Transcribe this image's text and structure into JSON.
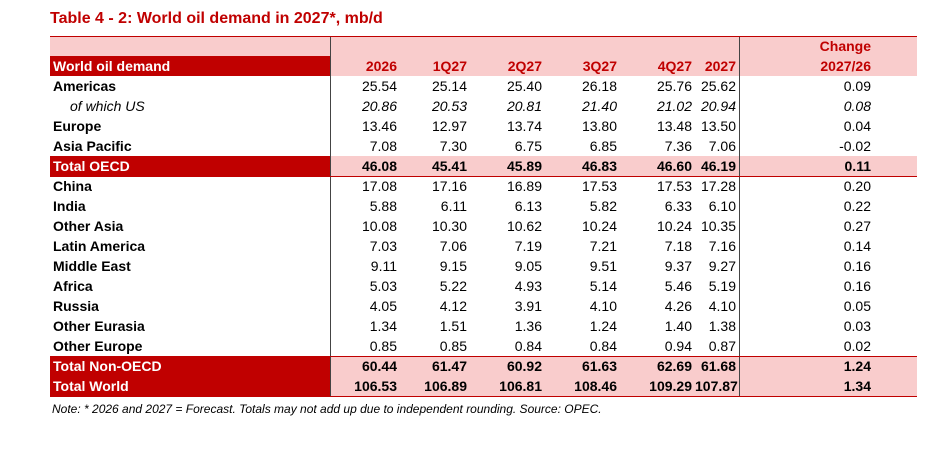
{
  "title": "Table 4 - 2: World oil demand in 2027*, mb/d",
  "table": {
    "header": [
      "World oil demand",
      "2026",
      "1Q27",
      "2Q27",
      "3Q27",
      "4Q27",
      "2027"
    ],
    "change_header": [
      "Change",
      "2027/26"
    ],
    "rows": [
      [
        "Americas",
        "25.54",
        "25.14",
        "25.40",
        "26.18",
        "25.76",
        "25.62",
        "0.09"
      ],
      [
        "of which US",
        "20.86",
        "20.53",
        "20.81",
        "21.40",
        "21.02",
        "20.94",
        "0.08"
      ],
      [
        "Europe",
        "13.46",
        "12.97",
        "13.74",
        "13.80",
        "13.48",
        "13.50",
        "0.04"
      ],
      [
        "Asia Pacific",
        "7.08",
        "7.30",
        "6.75",
        "6.85",
        "7.36",
        "7.06",
        "-0.02"
      ],
      [
        "Total OECD",
        "46.08",
        "45.41",
        "45.89",
        "46.83",
        "46.60",
        "46.19",
        "0.11"
      ],
      [
        "China",
        "17.08",
        "17.16",
        "16.89",
        "17.53",
        "17.53",
        "17.28",
        "0.20"
      ],
      [
        "India",
        "5.88",
        "6.11",
        "6.13",
        "5.82",
        "6.33",
        "6.10",
        "0.22"
      ],
      [
        "Other Asia",
        "10.08",
        "10.30",
        "10.62",
        "10.24",
        "10.24",
        "10.35",
        "0.27"
      ],
      [
        "Latin America",
        "7.03",
        "7.06",
        "7.19",
        "7.21",
        "7.18",
        "7.16",
        "0.14"
      ],
      [
        "Middle East",
        "9.11",
        "9.15",
        "9.05",
        "9.51",
        "9.37",
        "9.27",
        "0.16"
      ],
      [
        "Africa",
        "5.03",
        "5.22",
        "4.93",
        "5.14",
        "5.46",
        "5.19",
        "0.16"
      ],
      [
        "Russia",
        "4.05",
        "4.12",
        "3.91",
        "4.10",
        "4.26",
        "4.10",
        "0.05"
      ],
      [
        "Other Eurasia",
        "1.34",
        "1.51",
        "1.36",
        "1.24",
        "1.40",
        "1.38",
        "0.03"
      ],
      [
        "Other Europe",
        "0.85",
        "0.85",
        "0.84",
        "0.84",
        "0.94",
        "0.87",
        "0.02"
      ],
      [
        "Total Non-OECD",
        "60.44",
        "61.47",
        "60.92",
        "61.63",
        "62.69",
        "61.68",
        "1.24"
      ],
      [
        "Total World",
        "106.53",
        "106.89",
        "106.81",
        "108.46",
        "109.29",
        "107.87",
        "1.34"
      ]
    ]
  },
  "note": "Note: * 2026 and 2027 = Forecast. Totals may not add up due to independent rounding. Source: OPEC."
}
